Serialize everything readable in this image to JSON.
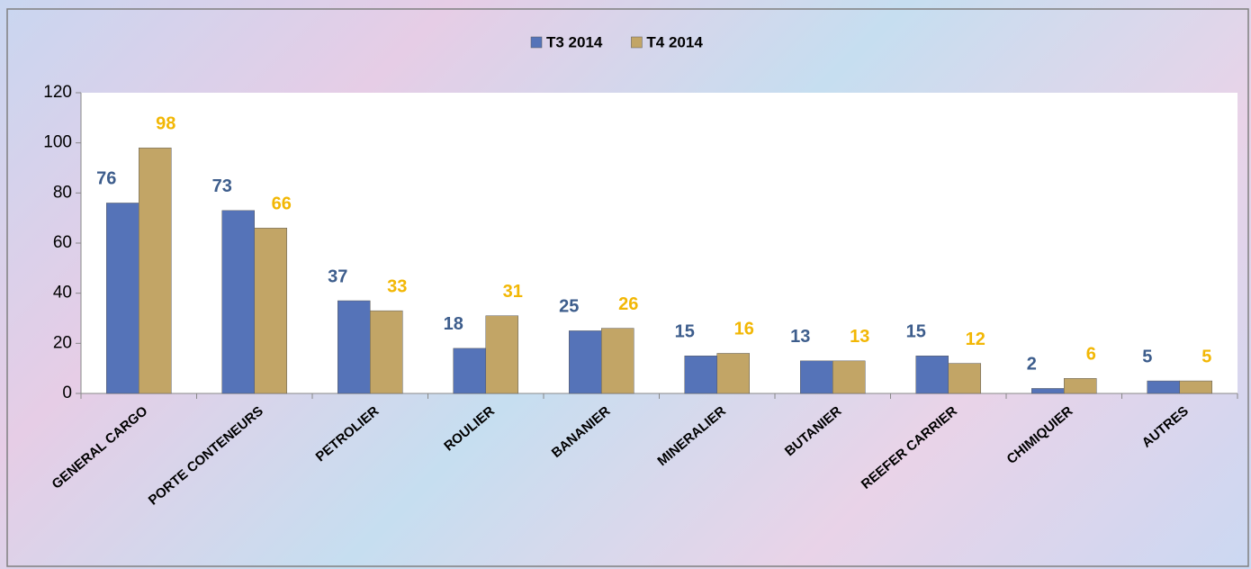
{
  "chart_data": {
    "type": "bar",
    "categories": [
      "GENERAL CARGO",
      "PORTE CONTENEURS",
      "PETROLIER",
      "ROULIER",
      "BANANIER",
      "MINERALIER",
      "BUTANIER",
      "REEFER CARRIER",
      "CHIMIQUIER",
      "AUTRES"
    ],
    "series": [
      {
        "name": "T3 2014",
        "color": "#5573b8",
        "label_color": "#3d5d8c",
        "values": [
          76,
          73,
          37,
          18,
          25,
          15,
          13,
          15,
          2,
          5
        ]
      },
      {
        "name": "T4 2014",
        "color": "#c2a566",
        "label_color": "#f2b705",
        "values": [
          98,
          66,
          33,
          31,
          26,
          16,
          13,
          12,
          6,
          5
        ]
      }
    ],
    "ylim": [
      0,
      120
    ],
    "yticks": [
      0,
      20,
      40,
      60,
      80,
      100,
      120
    ],
    "grid": false,
    "legend": "top"
  }
}
